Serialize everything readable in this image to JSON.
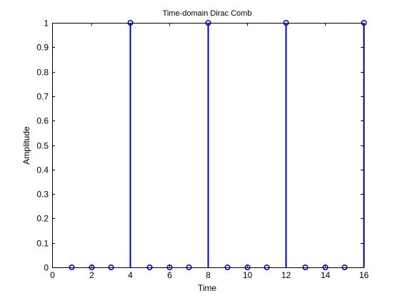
{
  "chart_data": {
    "type": "stem",
    "title": "Time-domain Dirac Comb",
    "xlabel": "Time",
    "ylabel": "Amplitude",
    "xlim": [
      0,
      16
    ],
    "ylim": [
      0,
      1
    ],
    "xticks": [
      0,
      2,
      4,
      6,
      8,
      10,
      12,
      14,
      16
    ],
    "yticks": [
      0,
      0.1,
      0.2,
      0.3,
      0.4,
      0.5,
      0.6,
      0.7,
      0.8,
      0.9,
      1
    ],
    "grid": false,
    "series": [
      {
        "color": "#0000aa",
        "marker": "circle",
        "x": [
          1,
          2,
          3,
          4,
          5,
          6,
          7,
          8,
          9,
          10,
          11,
          12,
          13,
          14,
          15,
          16
        ],
        "y": [
          0,
          0,
          0,
          1,
          0,
          0,
          0,
          1,
          0,
          0,
          0,
          1,
          0,
          0,
          0,
          1
        ]
      }
    ]
  }
}
